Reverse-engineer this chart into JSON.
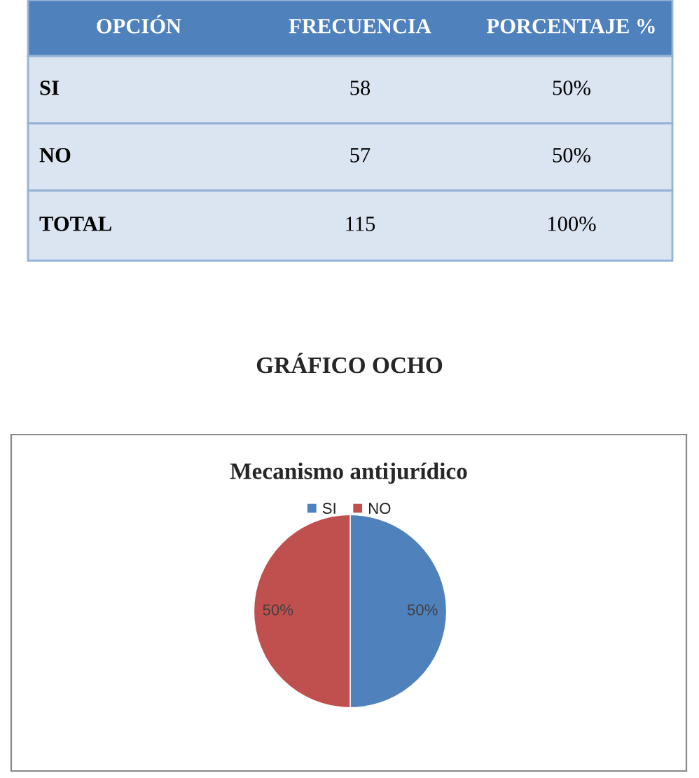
{
  "chart_data": [
    {
      "type": "other",
      "annotations": [
        "OPCIÓN",
        "FRECUENCIA",
        "PORCENTAJE %",
        "SI",
        "58",
        "50%",
        "NO",
        "57",
        "50%",
        "TOTAL",
        "115",
        "100%"
      ]
    },
    {
      "type": "pie",
      "title": "Mecanismo antijurídico",
      "annotations": [
        "GRÁFICO OCHO"
      ],
      "categories": [
        "SI",
        "NO"
      ],
      "values": [
        50,
        50
      ],
      "colors": [
        "#4f81bd",
        "#c0504d"
      ],
      "value_labels": [
        "50%",
        "50%"
      ],
      "legend": "top"
    }
  ]
}
